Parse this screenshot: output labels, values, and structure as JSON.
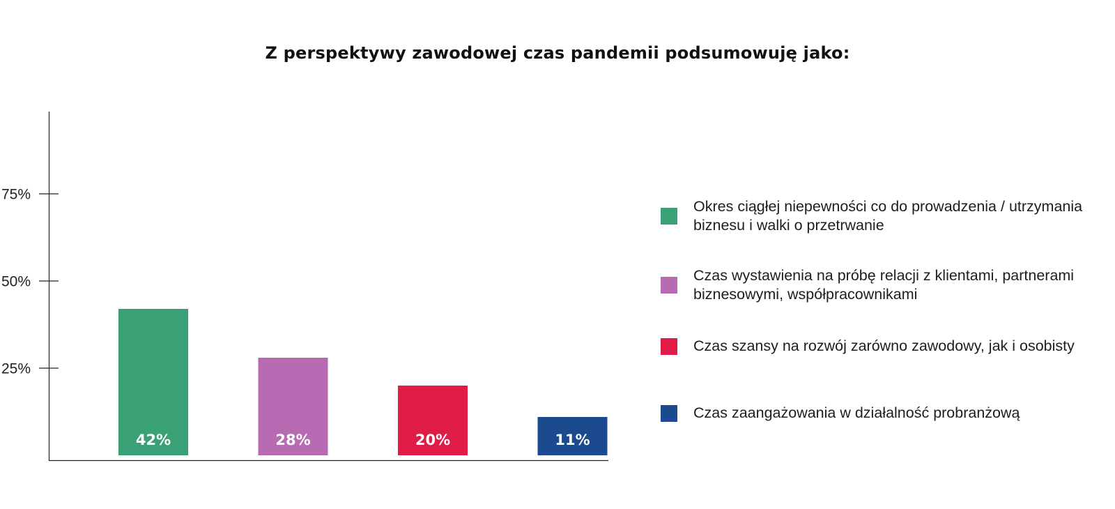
{
  "chart_data": {
    "type": "bar",
    "title": "Z perspektywy zawodowej czas pandemii podsumowuję jako:",
    "categories": [
      "Okres ciągłej niepewności co do prowadzenia / utrzymania biznesu i walki o przetrwanie",
      "Czas wystawienia na próbę relacji z klientami, partnerami biznesowymi, współpracownikami",
      "Czas szansy na rozwój zarówno zawodowy, jak i osobisty",
      "Czas zaangażowania w działalność probranżową"
    ],
    "values": [
      42,
      28,
      20,
      11
    ],
    "value_labels": [
      "42%",
      "28%",
      "20%",
      "11%"
    ],
    "colors": [
      "#3aa177",
      "#b86ab3",
      "#df1c45",
      "#1b4a8f"
    ],
    "xlabel": "",
    "ylabel": "",
    "ylim": [
      0,
      100
    ],
    "yticks": [
      25,
      50,
      75
    ],
    "ytick_labels": [
      "25%",
      "50%",
      "75%"
    ],
    "grid": false,
    "legend_position": "right"
  }
}
